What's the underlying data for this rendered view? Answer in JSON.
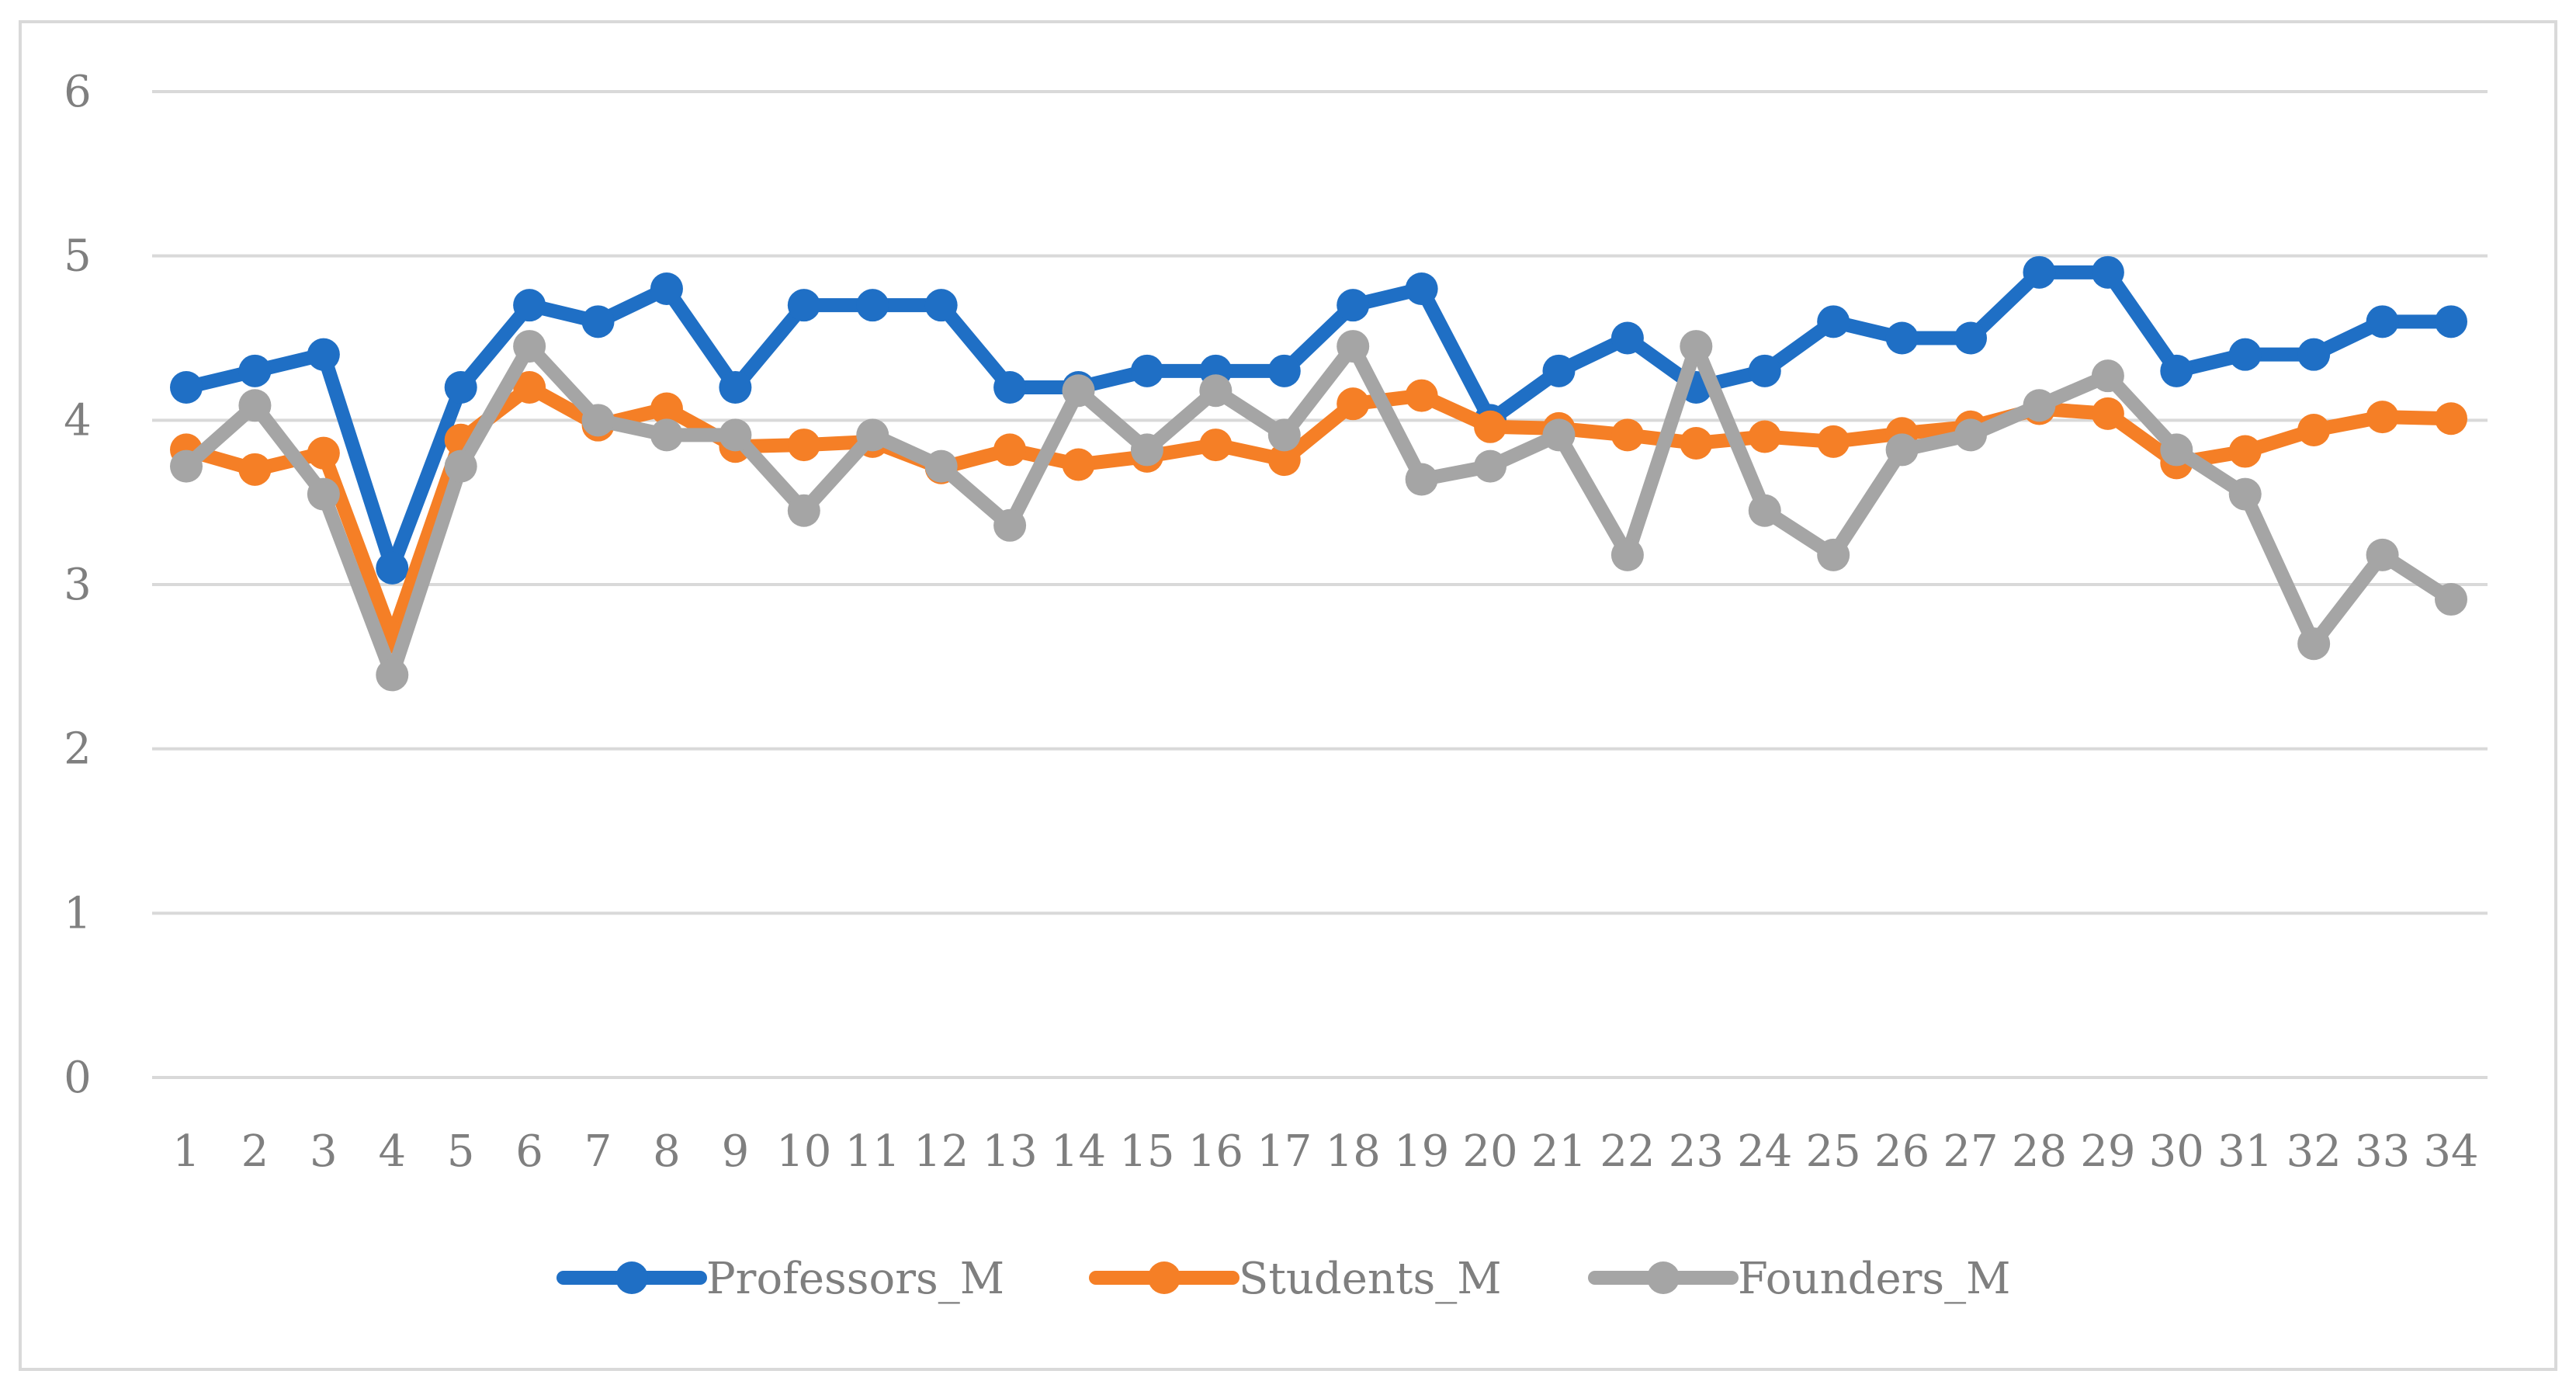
{
  "chart_data": {
    "type": "line",
    "title": "",
    "xlabel": "",
    "ylabel": "",
    "ylim": [
      0,
      6
    ],
    "yticks": [
      "0",
      "1",
      "2",
      "3",
      "4",
      "5",
      "6"
    ],
    "grid": true,
    "legend_position": "bottom",
    "categories": [
      "1",
      "2",
      "3",
      "4",
      "5",
      "6",
      "7",
      "8",
      "9",
      "10",
      "11",
      "12",
      "13",
      "14",
      "15",
      "16",
      "17",
      "18",
      "19",
      "20",
      "21",
      "22",
      "23",
      "24",
      "25",
      "26",
      "27",
      "28",
      "29",
      "30",
      "31",
      "32",
      "33",
      "34"
    ],
    "series": [
      {
        "name": "Professors_M",
        "color": "#1f6fc5",
        "values": [
          4.2,
          4.3,
          4.4,
          3.1,
          4.2,
          4.7,
          4.6,
          4.8,
          4.2,
          4.7,
          4.7,
          4.7,
          4.2,
          4.2,
          4.3,
          4.3,
          4.3,
          4.7,
          4.8,
          4.0,
          4.3,
          4.5,
          4.2,
          4.3,
          4.6,
          4.5,
          4.5,
          4.9,
          4.9,
          4.3,
          4.4,
          4.4,
          4.6,
          4.6
        ]
      },
      {
        "name": "Students_M",
        "color": "#f57f26",
        "values": [
          3.82,
          3.7,
          3.8,
          2.68,
          3.88,
          4.2,
          3.97,
          4.07,
          3.84,
          3.85,
          3.87,
          3.71,
          3.82,
          3.73,
          3.78,
          3.85,
          3.76,
          4.1,
          4.15,
          3.96,
          3.95,
          3.91,
          3.86,
          3.9,
          3.87,
          3.92,
          3.96,
          4.07,
          4.04,
          3.74,
          3.81,
          3.94,
          4.02,
          4.01
        ]
      },
      {
        "name": "Founders_M",
        "color": "#a5a5a5",
        "values": [
          3.72,
          4.09,
          3.55,
          2.45,
          3.72,
          4.45,
          4.0,
          3.91,
          3.91,
          3.45,
          3.91,
          3.72,
          3.36,
          4.18,
          3.82,
          4.18,
          3.91,
          4.45,
          3.64,
          3.72,
          3.91,
          3.18,
          4.45,
          3.45,
          3.18,
          3.82,
          3.91,
          4.09,
          4.27,
          3.82,
          3.55,
          2.64,
          3.18,
          2.91
        ]
      }
    ]
  }
}
